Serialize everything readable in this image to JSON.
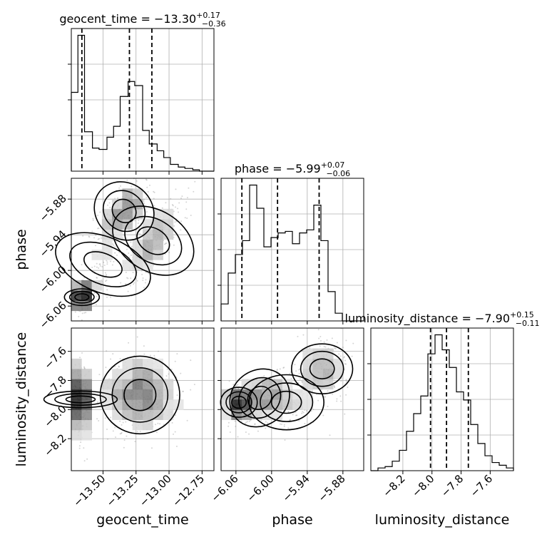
{
  "chart_data": {
    "type": "corner",
    "parameters": [
      "geocent_time",
      "phase",
      "luminosity_distance"
    ],
    "titles": {
      "geocent_time": {
        "name": "geocent_time",
        "median": "−13.30",
        "plus": "+0.17",
        "minus": "−0.36"
      },
      "phase": {
        "name": "phase",
        "median": "−5.99",
        "plus": "+0.07",
        "minus": "−0.06"
      },
      "luminosity_distance": {
        "name": "luminosity_distance",
        "median": "−7.90",
        "plus": "+0.15",
        "minus": "−0.11"
      }
    },
    "ranges": {
      "geocent_time": [
        -13.74,
        -12.66
      ],
      "phase": [
        -6.085,
        -5.845
      ],
      "luminosity_distance": [
        -8.42,
        -7.44
      ]
    },
    "ticks": {
      "geocent_time": {
        "values": [
          -13.5,
          -13.25,
          -13.0,
          -12.75
        ],
        "labels": [
          "−13.50",
          "−13.25",
          "−13.00",
          "−12.75"
        ]
      },
      "phase": {
        "values": [
          -6.06,
          -6.0,
          -5.94,
          -5.88
        ],
        "labels": [
          "−6.06",
          "−6.00",
          "−5.94",
          "−5.88"
        ]
      },
      "luminosity_distance": {
        "values": [
          -8.2,
          -8.0,
          -7.8,
          -7.6
        ],
        "labels": [
          "−8.2",
          "−8.0",
          "−7.8",
          "−7.6"
        ]
      }
    },
    "quantiles": {
      "geocent_time": [
        -13.66,
        -13.3,
        -13.13
      ],
      "phase": [
        -6.05,
        -5.99,
        -5.92
      ],
      "luminosity_distance": [
        -8.01,
        -7.9,
        -7.75
      ]
    },
    "histograms": {
      "geocent_time": {
        "edges": [
          -13.74,
          -13.69,
          -13.64,
          -13.58,
          -13.53,
          -13.47,
          -13.42,
          -13.37,
          -13.31,
          -13.26,
          -13.2,
          -13.15,
          -13.09,
          -13.04,
          -12.99,
          -12.93,
          -12.88,
          -12.82,
          -12.77,
          -12.71,
          -12.66
        ],
        "counts": [
          0.58,
          1.0,
          0.29,
          0.17,
          0.16,
          0.25,
          0.33,
          0.55,
          0.66,
          0.63,
          0.3,
          0.2,
          0.15,
          0.1,
          0.05,
          0.03,
          0.02,
          0.01,
          0.0,
          0.0
        ]
      },
      "phase": {
        "edges": [
          -6.085,
          -6.073,
          -6.061,
          -6.049,
          -6.037,
          -6.025,
          -6.013,
          -6.001,
          -5.989,
          -5.977,
          -5.965,
          -5.953,
          -5.941,
          -5.929,
          -5.917,
          -5.905,
          -5.893,
          -5.881,
          -5.869,
          -5.857,
          -5.845
        ],
        "counts": [
          0.11,
          0.31,
          0.43,
          0.52,
          0.88,
          0.73,
          0.48,
          0.54,
          0.57,
          0.58,
          0.5,
          0.57,
          0.59,
          0.75,
          0.52,
          0.19,
          0.05,
          0.0,
          0.0,
          0.0
        ]
      },
      "luminosity_distance": {
        "edges": [
          -8.42,
          -8.371,
          -8.322,
          -8.273,
          -8.224,
          -8.175,
          -8.126,
          -8.077,
          -8.028,
          -7.979,
          -7.93,
          -7.881,
          -7.832,
          -7.783,
          -7.734,
          -7.685,
          -7.636,
          -7.587,
          -7.538,
          -7.489,
          -7.44
        ],
        "counts": [
          0.0,
          0.02,
          0.03,
          0.07,
          0.15,
          0.29,
          0.42,
          0.55,
          0.86,
          1.0,
          0.89,
          0.76,
          0.58,
          0.52,
          0.34,
          0.2,
          0.11,
          0.06,
          0.04,
          0.02
        ]
      }
    },
    "pairs": [
      {
        "x": "geocent_time",
        "y": "phase",
        "clusters": [
          {
            "cx": -13.66,
            "cy": -6.045,
            "sx": 0.03,
            "sy": 0.014,
            "rho": 0.0,
            "n": 700
          },
          {
            "cx": -13.34,
            "cy": -5.9,
            "sx": 0.1,
            "sy": 0.025,
            "rho": 0.6,
            "n": 900
          },
          {
            "cx": -13.12,
            "cy": -5.95,
            "sx": 0.11,
            "sy": 0.035,
            "rho": 0.7,
            "n": 900
          },
          {
            "cx": -13.5,
            "cy": -5.99,
            "sx": 0.1,
            "sy": 0.04,
            "rho": 0.6,
            "n": 300
          }
        ]
      },
      {
        "x": "geocent_time",
        "y": "luminosity_distance",
        "clusters": [
          {
            "cx": -13.67,
            "cy": -7.93,
            "sx": 0.03,
            "sy": 0.12,
            "rho": 0.0,
            "n": 900
          },
          {
            "cx": -13.22,
            "cy": -7.9,
            "sx": 0.14,
            "sy": 0.13,
            "rho": 0.0,
            "n": 1500
          }
        ]
      },
      {
        "x": "phase",
        "y": "luminosity_distance",
        "clusters": [
          {
            "cx": -6.055,
            "cy": -7.95,
            "sx": 0.012,
            "sy": 0.06,
            "rho": 0.0,
            "n": 600
          },
          {
            "cx": -6.02,
            "cy": -7.92,
            "sx": 0.025,
            "sy": 0.09,
            "rho": 0.5,
            "n": 700
          },
          {
            "cx": -5.915,
            "cy": -7.72,
            "sx": 0.02,
            "sy": 0.1,
            "rho": 0.0,
            "n": 700
          },
          {
            "cx": -5.975,
            "cy": -7.95,
            "sx": 0.03,
            "sy": 0.09,
            "rho": 0.0,
            "n": 500
          }
        ]
      }
    ]
  }
}
